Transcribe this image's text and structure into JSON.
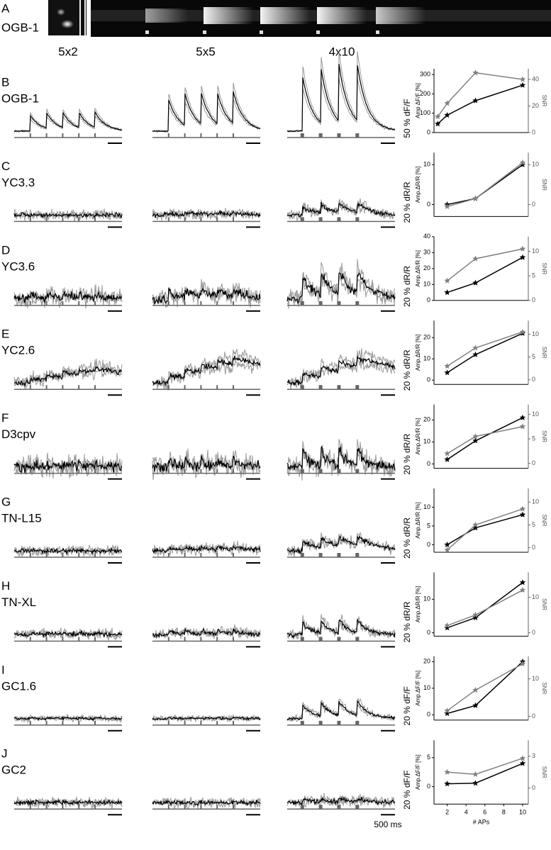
{
  "panel_a": {
    "letter": "A",
    "label": "OGB-1"
  },
  "column_headers": [
    "5x2",
    "5x5",
    "4x10"
  ],
  "rows": [
    {
      "letter": "B",
      "indicator": "OGB-1",
      "scale_label": "50 % dF/F"
    },
    {
      "letter": "C",
      "indicator": "YC3.3",
      "scale_label": "20 % dR/R"
    },
    {
      "letter": "D",
      "indicator": "YC3.6",
      "scale_label": "20 % dR/R"
    },
    {
      "letter": "E",
      "indicator": "YC2.6",
      "scale_label": "20 % dR/R"
    },
    {
      "letter": "F",
      "indicator": "D3cpv",
      "scale_label": "20 % dR/R"
    },
    {
      "letter": "G",
      "indicator": "TN-L15",
      "scale_label": "20 % dR/R"
    },
    {
      "letter": "H",
      "indicator": "TN-XL",
      "scale_label": "20 % dR/R"
    },
    {
      "letter": "I",
      "indicator": "GC1.6",
      "scale_label": "20 % dF/F"
    },
    {
      "letter": "J",
      "indicator": "GC2",
      "scale_label": "20 % dF/F"
    }
  ],
  "time_scale": "500 ms",
  "chart_data": [
    {
      "type": "line",
      "ylabel": "Amp ΔF/F [%]",
      "y2label": "SNR",
      "x": [
        1,
        2,
        5,
        10
      ],
      "xlim": [
        0.6,
        10.6
      ],
      "ylim": [
        0,
        330
      ],
      "yticks": [
        0,
        100,
        200,
        300
      ],
      "y2lim": [
        0,
        48
      ],
      "y2ticks": [
        0,
        20,
        40
      ],
      "series": [
        {
          "color": "#000000",
          "values": [
            45,
            90,
            165,
            245
          ]
        },
        {
          "color": "#808080",
          "axis": "y2",
          "values": [
            12,
            22,
            45,
            40
          ]
        }
      ]
    },
    {
      "type": "line",
      "ylabel": "Amp.ΔR/R [%]",
      "y2label": "SNR",
      "x": [
        2,
        5,
        10
      ],
      "xlim": [
        0.6,
        10.6
      ],
      "ylim": [
        -3,
        13
      ],
      "yticks": [
        0,
        10
      ],
      "y2lim": [
        -3,
        13
      ],
      "y2ticks": [
        0,
        10
      ],
      "series": [
        {
          "color": "#000000",
          "values": [
            0,
            1.5,
            10
          ]
        },
        {
          "color": "#808080",
          "axis": "y2",
          "values": [
            -0.5,
            1.5,
            10.5
          ]
        }
      ]
    },
    {
      "type": "line",
      "ylabel": "Amp.ΔR/R [%]",
      "y2label": "SNR",
      "x": [
        2,
        5,
        10
      ],
      "xlim": [
        0.6,
        10.6
      ],
      "ylim": [
        0,
        40
      ],
      "yticks": [
        0,
        10,
        20,
        30,
        40
      ],
      "y2lim": [
        0,
        13
      ],
      "y2ticks": [
        0,
        5,
        10
      ],
      "series": [
        {
          "color": "#000000",
          "values": [
            5,
            11,
            27
          ]
        },
        {
          "color": "#808080",
          "axis": "y2",
          "values": [
            4,
            8.5,
            10.5
          ]
        }
      ]
    },
    {
      "type": "line",
      "ylabel": "Amp.ΔR/R [%]",
      "y2label": "SNR",
      "x": [
        2,
        5,
        10
      ],
      "xlim": [
        0.6,
        10.6
      ],
      "ylim": [
        -2,
        28
      ],
      "yticks": [
        0,
        10,
        20
      ],
      "y2lim": [
        -1,
        13
      ],
      "y2ticks": [
        0,
        5,
        10
      ],
      "series": [
        {
          "color": "#000000",
          "values": [
            3.5,
            12,
            22
          ]
        },
        {
          "color": "#808080",
          "axis": "y2",
          "values": [
            3,
            7,
            10.5
          ]
        }
      ]
    },
    {
      "type": "line",
      "ylabel": "Amp.ΔR/R [%]",
      "y2label": "SNR",
      "x": [
        2,
        5,
        10
      ],
      "xlim": [
        0.6,
        10.6
      ],
      "ylim": [
        -2,
        27
      ],
      "yticks": [
        0,
        10,
        20
      ],
      "y2lim": [
        -1,
        12
      ],
      "y2ticks": [
        0,
        5,
        10
      ],
      "series": [
        {
          "color": "#000000",
          "values": [
            2,
            10.5,
            21
          ]
        },
        {
          "color": "#808080",
          "axis": "y2",
          "values": [
            2,
            5.5,
            7.5
          ]
        }
      ]
    },
    {
      "type": "line",
      "ylabel": "Amp.ΔR/R [%]",
      "y2label": "SNR",
      "x": [
        2,
        5,
        10
      ],
      "xlim": [
        0.6,
        10.6
      ],
      "ylim": [
        -2,
        15
      ],
      "yticks": [
        0,
        5,
        10
      ],
      "y2lim": [
        -1,
        13
      ],
      "y2ticks": [
        0,
        5,
        10
      ],
      "series": [
        {
          "color": "#000000",
          "values": [
            0,
            4.5,
            8
          ]
        },
        {
          "color": "#808080",
          "axis": "y2",
          "values": [
            -0.5,
            5,
            8.5
          ]
        }
      ]
    },
    {
      "type": "line",
      "ylabel": "Amp.ΔR/R [%]",
      "y2label": "SNR",
      "x": [
        2,
        5,
        10
      ],
      "xlim": [
        0.6,
        10.6
      ],
      "ylim": [
        -1,
        18
      ],
      "yticks": [
        0,
        10
      ],
      "y2lim": [
        -1,
        17
      ],
      "y2ticks": [
        0,
        10
      ],
      "series": [
        {
          "color": "#000000",
          "values": [
            1.5,
            4.5,
            15
          ]
        },
        {
          "color": "#808080",
          "axis": "y2",
          "values": [
            2,
            5,
            12
          ]
        }
      ]
    },
    {
      "type": "line",
      "ylabel": "Amp.ΔF/F [%]",
      "y2label": "SNR",
      "x": [
        2,
        5,
        10
      ],
      "xlim": [
        0.6,
        10.6
      ],
      "ylim": [
        -2,
        22
      ],
      "yticks": [
        0,
        10,
        20
      ],
      "y2lim": [
        -1,
        16
      ],
      "y2ticks": [
        0,
        10
      ],
      "series": [
        {
          "color": "#000000",
          "values": [
            0.5,
            3.5,
            20
          ]
        },
        {
          "color": "#808080",
          "axis": "y2",
          "values": [
            1.5,
            7,
            14
          ]
        }
      ]
    },
    {
      "type": "line",
      "ylabel": "Amp.ΔF/F [%]",
      "y2label": "SNR",
      "xlabel": "# APs",
      "x": [
        2,
        5,
        10
      ],
      "xlim": [
        0.6,
        10.6
      ],
      "xticks": [
        2,
        4,
        6,
        8,
        10
      ],
      "ylim": [
        -3,
        8
      ],
      "yticks": [
        0,
        5
      ],
      "y2lim": [
        -1.5,
        4.5
      ],
      "y2ticks": [
        0,
        3
      ],
      "series": [
        {
          "color": "#000000",
          "values": [
            0.5,
            0.6,
            4
          ]
        },
        {
          "color": "#808080",
          "axis": "y2",
          "values": [
            1.5,
            1.3,
            2.8
          ]
        }
      ]
    }
  ]
}
